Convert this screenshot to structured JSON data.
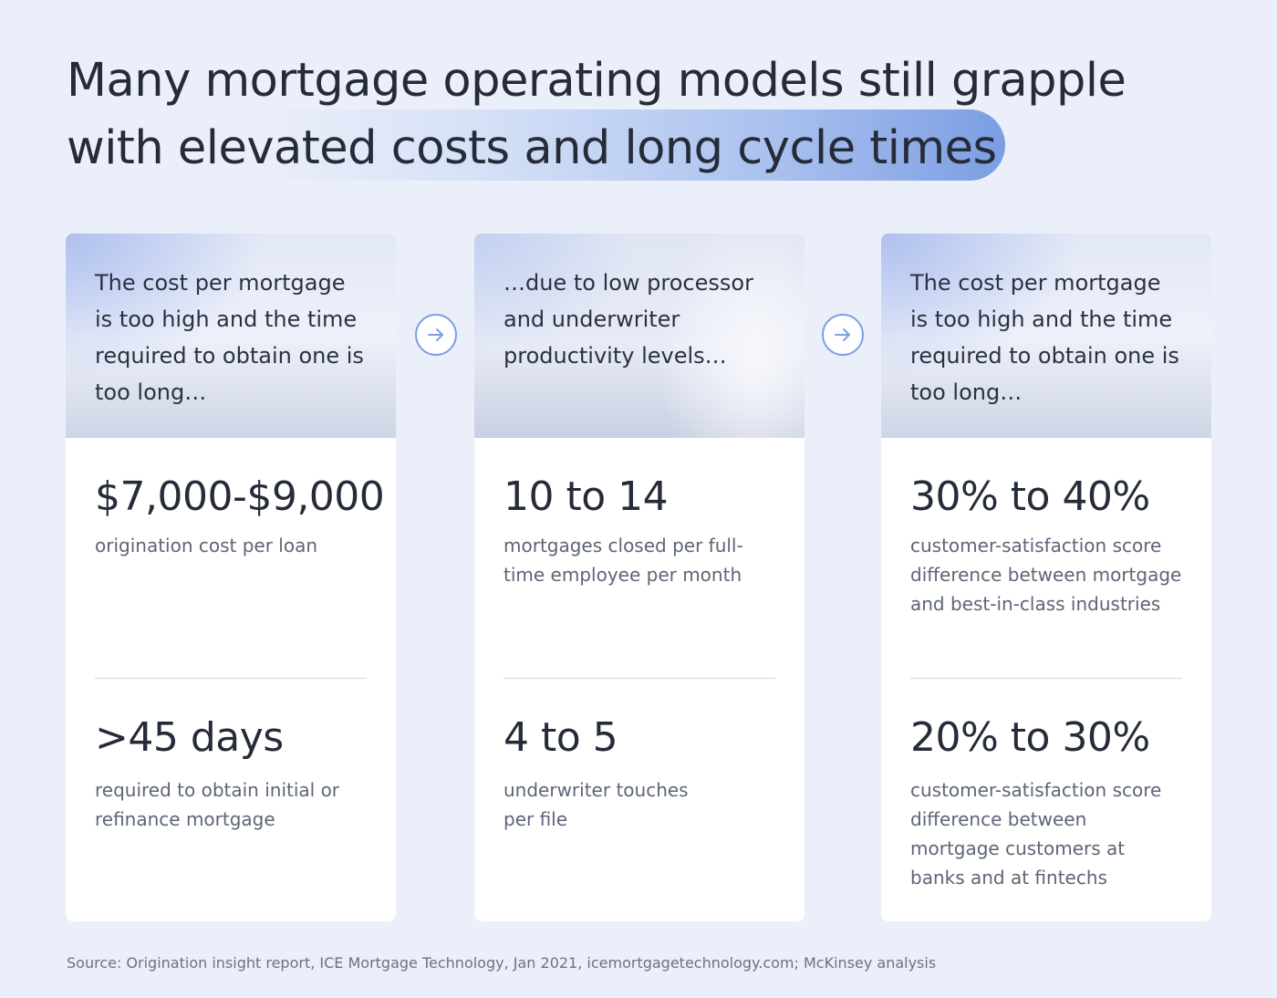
{
  "title": {
    "line1": "Many mortgage operating models still grapple",
    "line2": "with elevated costs and long cycle times"
  },
  "cards": [
    {
      "header": "The cost per mortgage is too high and the time required to obtain one is too long…",
      "stats": [
        {
          "value": "$7,000-$9,000",
          "description": "origination cost per loan"
        },
        {
          "value": ">45 days",
          "description": "required to obtain initial or refinance mortgage"
        }
      ]
    },
    {
      "header": "…due to low processor and underwriter productivity levels…",
      "stats": [
        {
          "value": "10 to 14",
          "description": "mortgages closed per full-time employee per month"
        },
        {
          "value": "4 to 5",
          "description": "underwriter touches per file"
        }
      ]
    },
    {
      "header": "The cost per mortgage is too high and the time required to obtain one is too long…",
      "stats": [
        {
          "value": "30% to 40%",
          "description": "customer-satisfaction score difference between mortgage and best-in-class industries"
        },
        {
          "value": "20% to 30%",
          "description": "customer-satisfaction score difference between mortgage customers at banks and at fintechs"
        }
      ]
    }
  ],
  "arrows": [
    {
      "icon": "arrow-right-icon"
    },
    {
      "icon": "arrow-right-icon"
    }
  ],
  "source": "Source: Origination insight report, ICE Mortgage Technology, Jan 2021, icemortgagetechnology.com; McKinsey analysis",
  "colors": {
    "background": "#ebeff9",
    "accent": "#7b9de3",
    "card": "#ffffff",
    "text": "#252b38",
    "muted_text": "#5d6576"
  }
}
